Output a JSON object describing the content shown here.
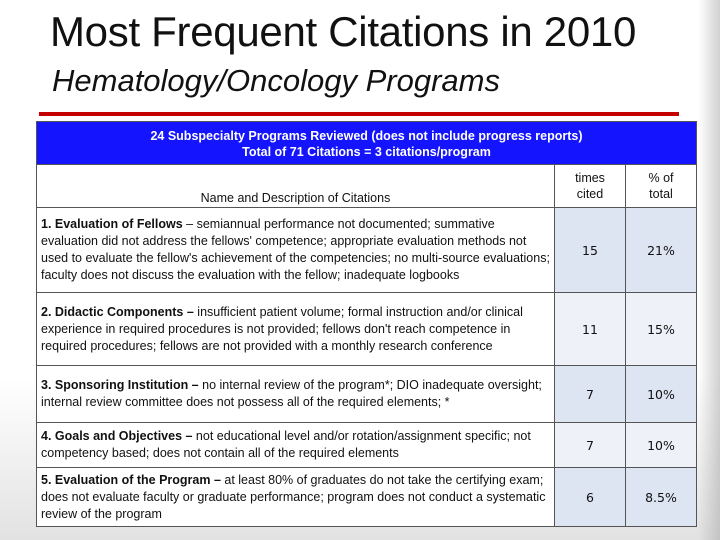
{
  "title": "Most Frequent Citations in 2010",
  "subtitle": "Hematology/Oncology Programs",
  "banner": {
    "line1": "24 Subspecialty Programs Reviewed (does not include progress reports)",
    "line2": "Total of 71 Citations =   3 citations/program"
  },
  "columns": {
    "name": "Name and Description of Citations",
    "times_line1": "times",
    "times_line2": "cited",
    "pct_line1": "% of",
    "pct_line2": "total"
  },
  "rows": [
    {
      "heading": "1. Evaluation of Fellows",
      "detail": " – semiannual performance not documented; summative evaluation did not address the fellows' competence; appropriate evaluation methods not used to evaluate the fellow's achievement of the competencies; no multi-source evaluations; faculty does not discuss the evaluation with the fellow; inadequate logbooks",
      "times": "15",
      "pct": "21%"
    },
    {
      "heading": "2. Didactic Components –",
      "detail": " insufficient patient volume; formal instruction and/or clinical experience in required procedures is not provided; fellows don't reach competence in required procedures; fellows are not provided with a monthly research conference",
      "times": "11",
      "pct": "15%"
    },
    {
      "heading": "3. Sponsoring Institution –",
      "detail": " no internal review of the program*; DIO inadequate oversight; internal review committee does not possess all of the required elements; *",
      "times": "7",
      "pct": "10%"
    },
    {
      "heading": "4. Goals and Objectives –",
      "detail": " not educational level and/or rotation/assignment specific; not competency based; does not contain all of the required elements",
      "times": "7",
      "pct": "10%"
    },
    {
      "heading": "5. Evaluation of the Program –",
      "detail": " at least 80% of graduates do not take the certifying exam;  does not evaluate faculty or graduate performance; program does not conduct a systematic review of the program",
      "times": "6",
      "pct": "8.5%"
    }
  ]
}
